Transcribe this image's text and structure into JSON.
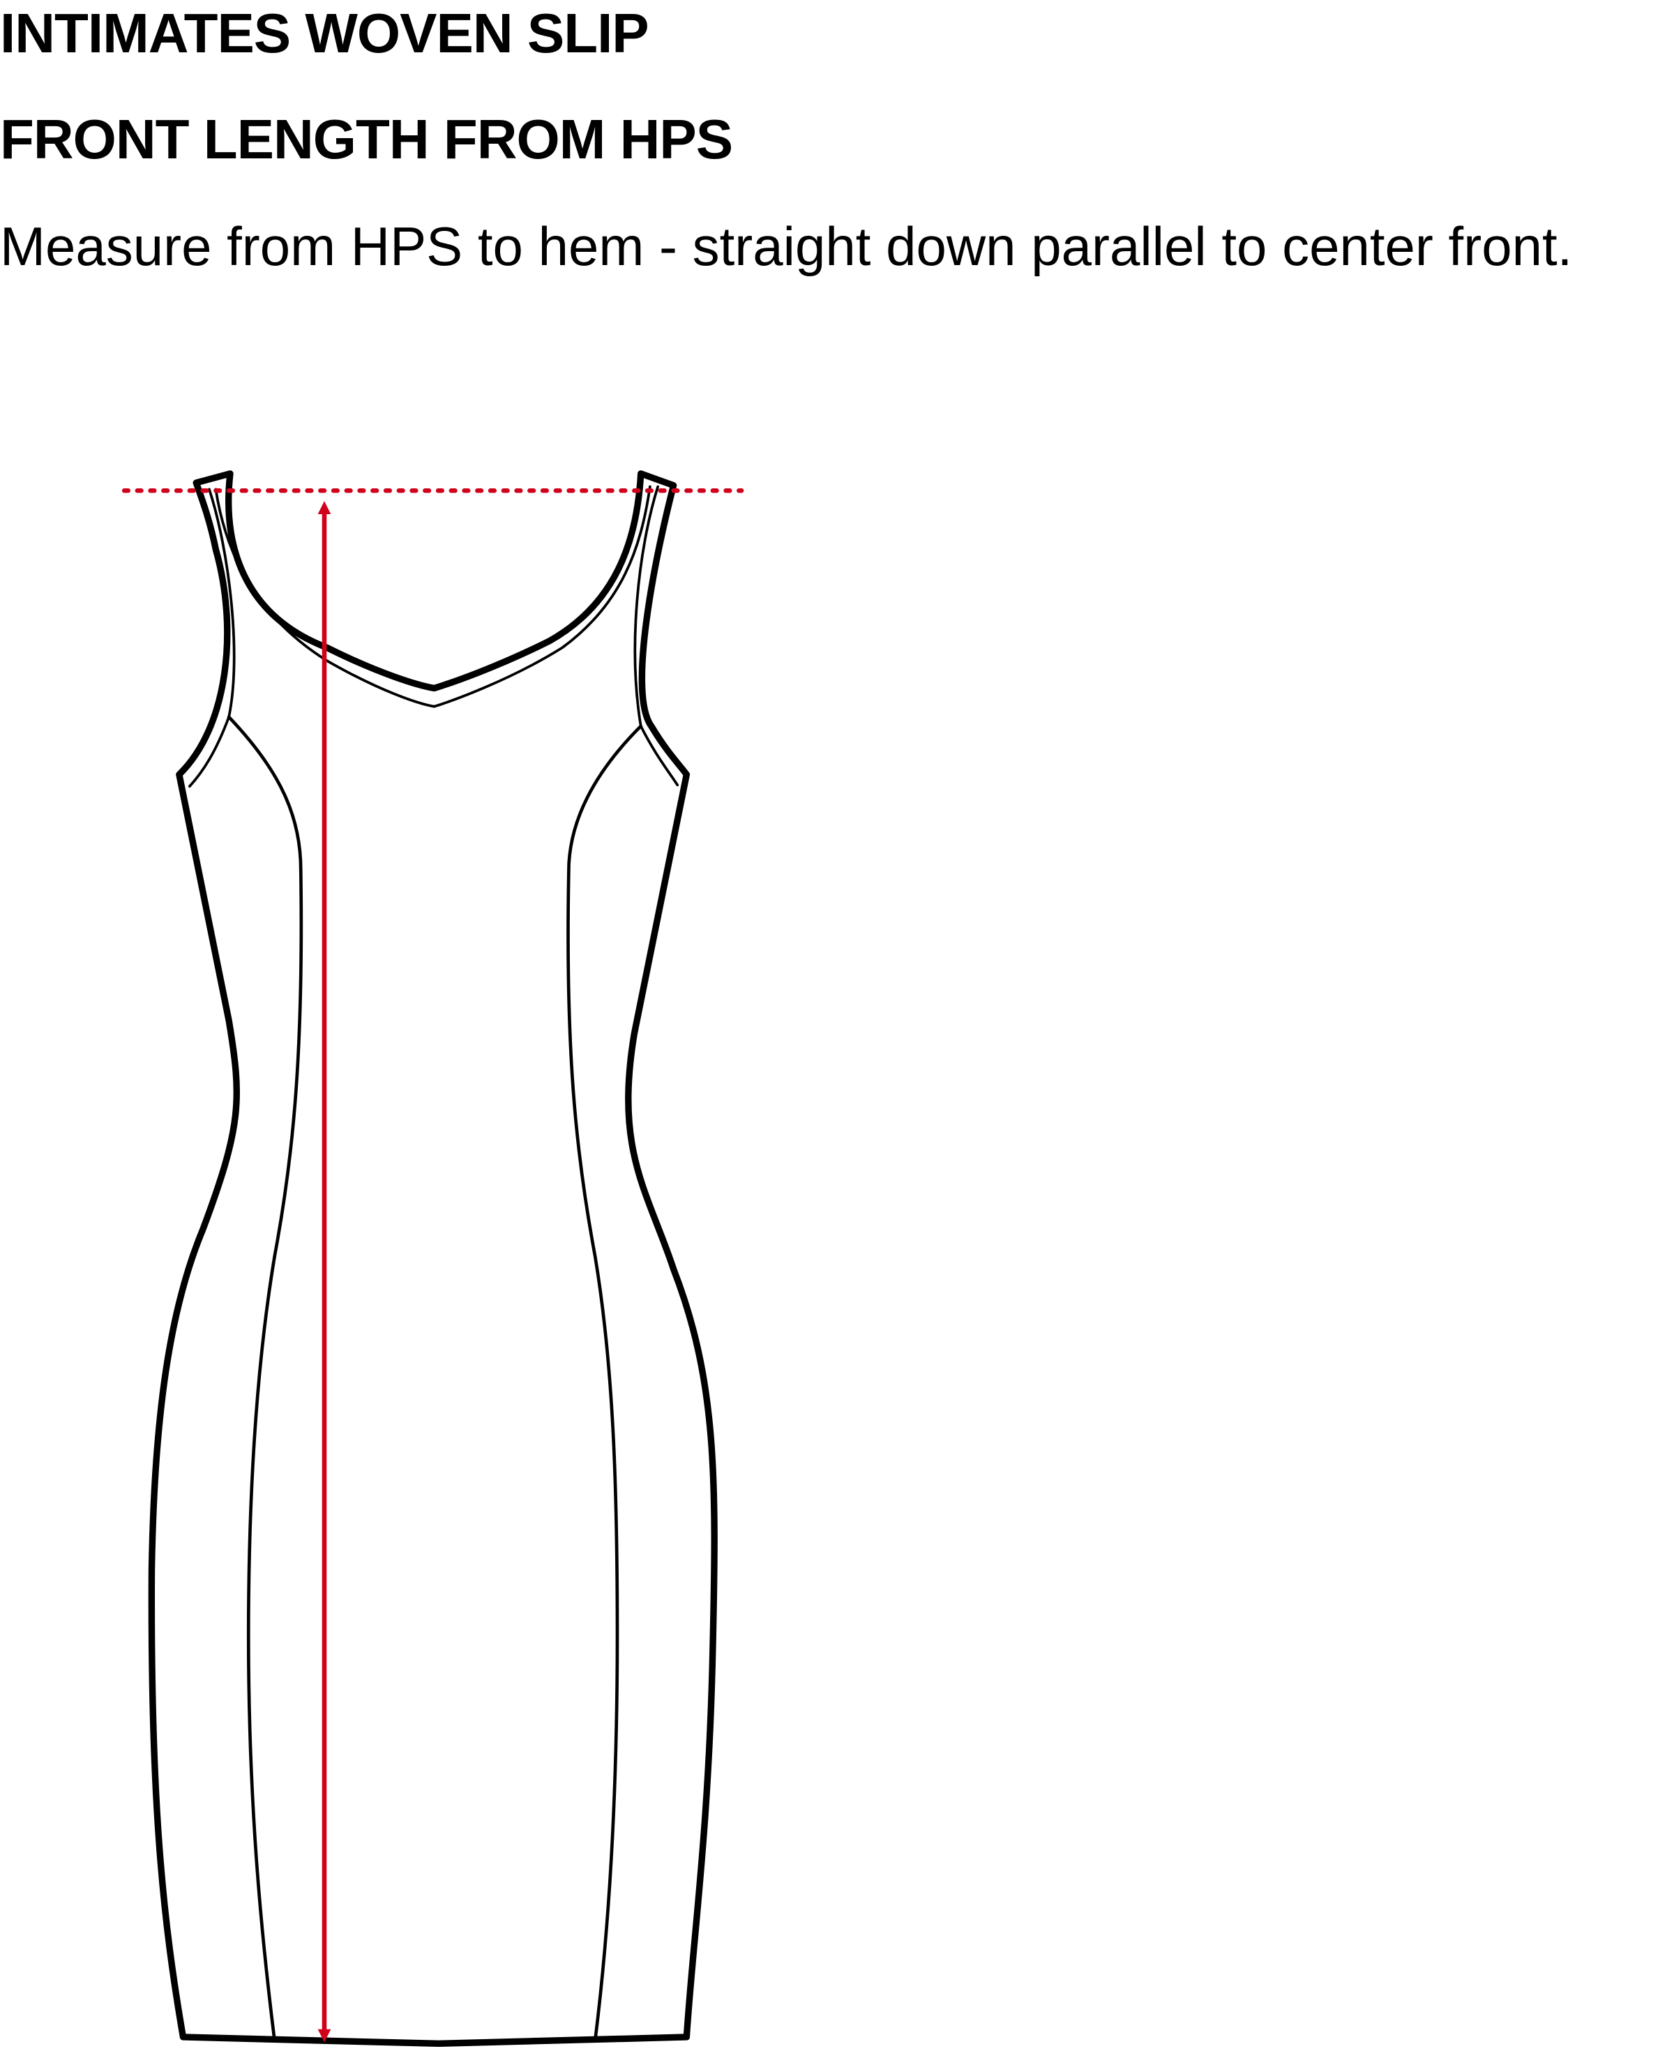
{
  "header": {
    "title": "INTIMATES WOVEN SLIP",
    "subtitle": "FRONT LENGTH FROM HPS",
    "instruction": "Measure from HPS to hem - straight down parallel to center front."
  },
  "diagram": {
    "garment": "woven slip, front view",
    "measurement_color": "#d0021b",
    "outline_color": "#000000",
    "background_color": "#ffffff"
  }
}
